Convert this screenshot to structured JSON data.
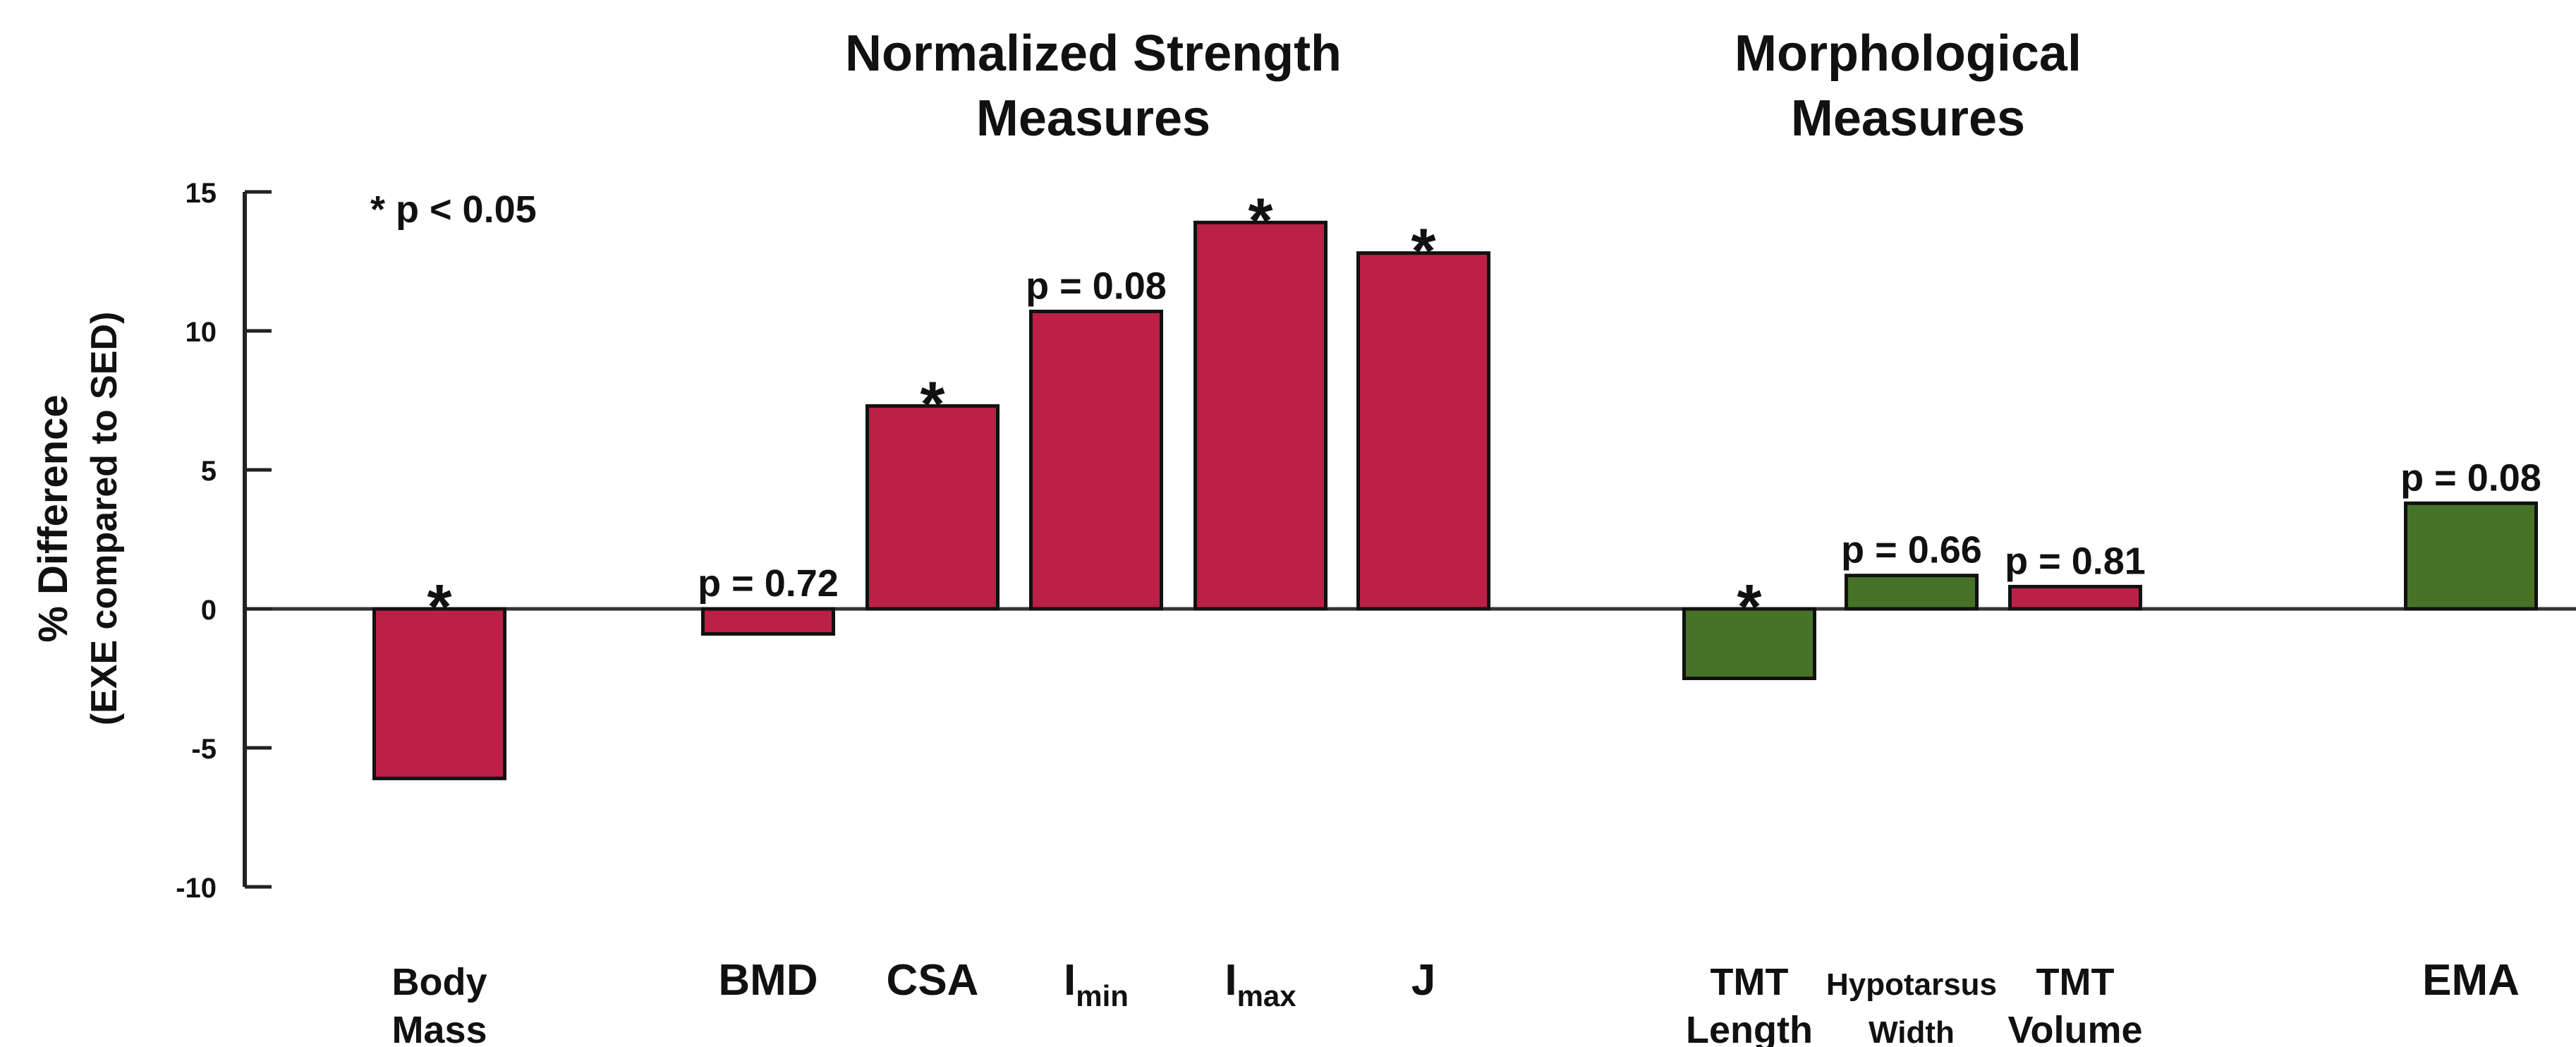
{
  "chart_data": {
    "type": "bar",
    "group_titles": [
      {
        "line1": "Normalized Strength",
        "line2": "Measures"
      },
      {
        "line1": "Morphological",
        "line2": "Measures"
      }
    ],
    "ylabel_line1": "% Difference",
    "ylabel_line2": "(EXE compared to SED)",
    "note": "* p < 0.05",
    "ylim": [
      -10,
      15
    ],
    "yticks": [
      15,
      10,
      5,
      0,
      -5,
      -10
    ],
    "grid": false,
    "colors": {
      "strength": "#bc2047",
      "morphological": "#477328"
    },
    "categories": [
      {
        "label": "Body",
        "label2": "Mass",
        "value": -6.1,
        "color": "strength",
        "annotation": "*"
      },
      {
        "label": "BMD",
        "value": -0.9,
        "color": "strength",
        "annotation": "p = 0.72"
      },
      {
        "label": "CSA",
        "value": 7.3,
        "color": "strength",
        "annotation": "*"
      },
      {
        "label": "I",
        "sub": "min",
        "value": 10.7,
        "color": "strength",
        "annotation": "p = 0.08"
      },
      {
        "label": "I",
        "sub": "max",
        "value": 13.9,
        "color": "strength",
        "annotation": "*"
      },
      {
        "label": "J",
        "value": 12.8,
        "color": "strength",
        "annotation": "*"
      },
      {
        "label": "TMT",
        "label2": "Length",
        "value": -2.5,
        "color": "morphological",
        "annotation": "*"
      },
      {
        "label": "Hypotarsus",
        "label2": "Width",
        "value": 1.2,
        "color": "morphological",
        "annotation": "p = 0.66"
      },
      {
        "label": "TMT",
        "label2": "Volume",
        "value": 0.8,
        "color": "strength",
        "annotation": "p = 0.81"
      },
      {
        "label": "EMA",
        "value": 3.8,
        "color": "morphological",
        "annotation": "p = 0.08"
      }
    ]
  }
}
